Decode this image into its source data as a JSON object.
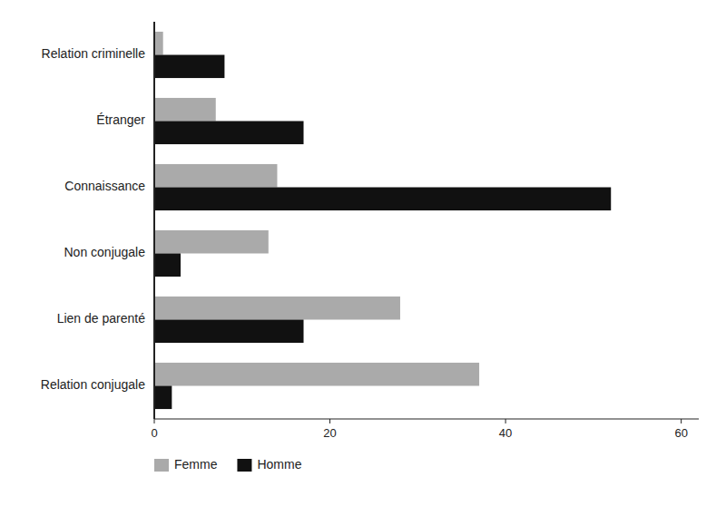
{
  "chart_data": {
    "type": "bar",
    "orientation": "horizontal",
    "categories": [
      "Relation criminelle",
      "Étranger",
      "Connaissance",
      "Non conjugale",
      "Lien de parenté",
      "Relation conjugale"
    ],
    "series": [
      {
        "name": "Femme",
        "color": "#aaaaaa",
        "values": [
          1,
          7,
          14,
          13,
          28,
          37
        ]
      },
      {
        "name": "Homme",
        "color": "#111111",
        "values": [
          8,
          17,
          52,
          3,
          17,
          2
        ]
      }
    ],
    "xlim": [
      0,
      62
    ],
    "xticks": [
      0,
      20,
      40,
      60
    ],
    "grid": false,
    "legend": "lower left"
  }
}
